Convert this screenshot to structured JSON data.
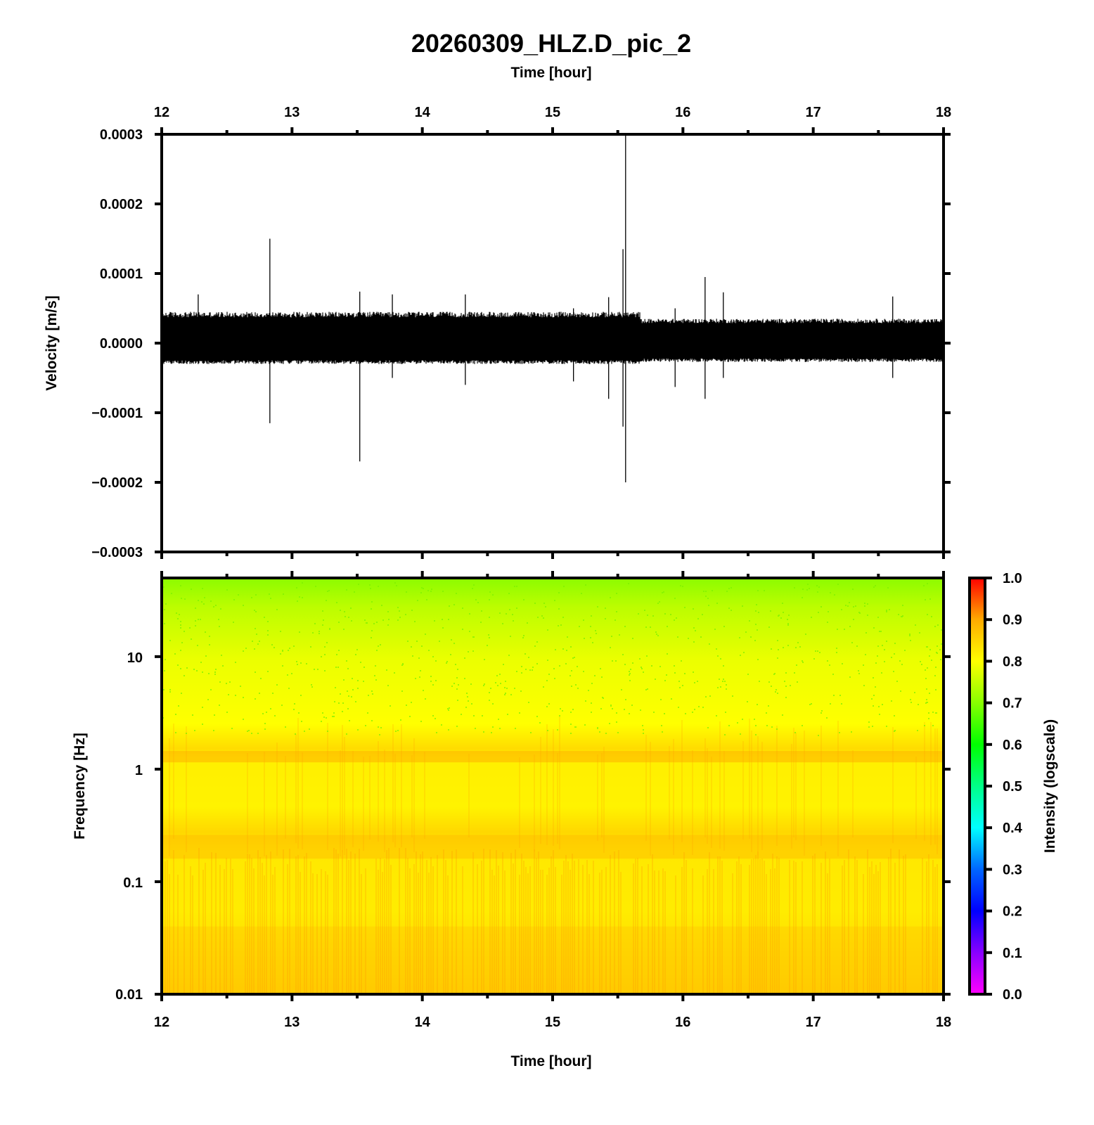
{
  "chart_data": [
    {
      "type": "line",
      "title": "20260309_HLZ.D_pic_2",
      "xlabel": "Time [hour]",
      "ylabel": "Velocity [m/s]",
      "xlim": [
        12,
        18
      ],
      "ylim": [
        -0.0003,
        0.0003
      ],
      "x_ticks": [
        "12",
        "13",
        "14",
        "15",
        "16",
        "17",
        "18"
      ],
      "y_ticks": [
        "0.0003",
        "0.0002",
        "0.0001",
        "0.0000",
        "−0.0001",
        "−0.0002",
        "−0.0003"
      ],
      "line_color": "#000000",
      "noise_envelope": [
        {
          "x0": 12.0,
          "x1": 15.67,
          "upper": 4.5e-05,
          "lower": -3e-05
        },
        {
          "x0": 15.67,
          "x1": 18.0,
          "upper": 3.5e-05,
          "lower": -2.7e-05
        }
      ],
      "spikes": [
        {
          "x": 12.28,
          "max": 7e-05,
          "min": -3e-05
        },
        {
          "x": 12.83,
          "max": 0.00015,
          "min": -0.000115
        },
        {
          "x": 13.52,
          "max": 7.4e-05,
          "min": -0.00017
        },
        {
          "x": 13.77,
          "max": 7e-05,
          "min": -5e-05
        },
        {
          "x": 14.33,
          "max": 7e-05,
          "min": -6e-05
        },
        {
          "x": 15.16,
          "max": 5e-05,
          "min": -5.5e-05
        },
        {
          "x": 15.43,
          "max": 6.6e-05,
          "min": -8e-05
        },
        {
          "x": 15.54,
          "max": 0.000135,
          "min": -0.00012
        },
        {
          "x": 15.56,
          "max": 0.0003,
          "min": -0.0002
        },
        {
          "x": 15.94,
          "max": 5e-05,
          "min": -6.3e-05
        },
        {
          "x": 16.17,
          "max": 9.5e-05,
          "min": -8e-05
        },
        {
          "x": 16.31,
          "max": 7.3e-05,
          "min": -5e-05
        },
        {
          "x": 17.61,
          "max": 6.7e-05,
          "min": -5e-05
        }
      ]
    },
    {
      "type": "heatmap",
      "xlabel": "Time [hour]",
      "ylabel": "Frequency [Hz]",
      "xlim": [
        12,
        18
      ],
      "ylim": [
        0.01,
        50
      ],
      "yscale": "log",
      "x_ticks": [
        "12",
        "13",
        "14",
        "15",
        "16",
        "17",
        "18"
      ],
      "y_ticks": [
        "10",
        "1",
        "0.1",
        "0.01"
      ],
      "colorbar": {
        "label": "Intensity (logscale)",
        "ticks": [
          "1.0",
          "0.9",
          "0.8",
          "0.7",
          "0.6",
          "0.5",
          "0.4",
          "0.3",
          "0.2",
          "0.1",
          "0.0"
        ],
        "range": [
          0,
          1
        ],
        "colors": [
          "#ff00ff",
          "#8800ff",
          "#0000ff",
          "#0066ff",
          "#00ffff",
          "#00ff88",
          "#00ff00",
          "#88ff00",
          "#ffff00",
          "#ffaa00",
          "#ff0000"
        ]
      },
      "intensity_profile": [
        {
          "freq": 0.01,
          "value": 0.86
        },
        {
          "freq": 0.05,
          "value": 0.84
        },
        {
          "freq": 0.2,
          "value": 0.86
        },
        {
          "freq": 0.5,
          "value": 0.82
        },
        {
          "freq": 1.0,
          "value": 0.84
        },
        {
          "freq": 1.3,
          "value": 0.87
        },
        {
          "freq": 2.0,
          "value": 0.8
        },
        {
          "freq": 5.0,
          "value": 0.78
        },
        {
          "freq": 15.0,
          "value": 0.74
        },
        {
          "freq": 50.0,
          "value": 0.68
        }
      ]
    }
  ]
}
